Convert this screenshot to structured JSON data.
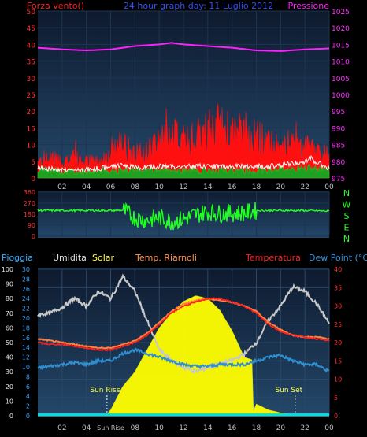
{
  "title": "24 hour graph day:  11 Luglio 2012",
  "top_panel": {
    "left_label": "Forza vento()",
    "right_label": "Pressione",
    "left_ticks": [
      "50",
      "45",
      "40",
      "35",
      "30",
      "25",
      "20",
      "15",
      "10",
      "5",
      "0"
    ],
    "right_ticks": [
      "1025",
      "1020",
      "1015",
      "1010",
      "1005",
      "1000",
      "995",
      "990",
      "985",
      "980",
      "975"
    ],
    "x_ticks": [
      "02",
      "04",
      "06",
      "08",
      "10",
      "12",
      "14",
      "16",
      "18",
      "20",
      "22",
      "00"
    ]
  },
  "mid_panel": {
    "left_ticks": [
      "360",
      "270",
      "180",
      "90",
      "0"
    ],
    "right_letters": [
      "N",
      "W",
      "S",
      "E",
      "N"
    ],
    "x_ticks": [
      "02",
      "04",
      "06",
      "08",
      "10",
      "12",
      "14",
      "16",
      "18",
      "20",
      "22",
      "00"
    ]
  },
  "bottom_header": {
    "pioggia": "Pioggia",
    "umidita": "Umidita",
    "solar": "Solar",
    "temp_riarnoli": "Temp. Riarnoli",
    "temperatura": "Temperatura",
    "dew_point": "Dew Point (°C)"
  },
  "bottom_panel": {
    "left_ticks_outer": [
      "100",
      "90",
      "80",
      "70",
      "60",
      "50",
      "40",
      "30",
      "20",
      "10",
      "0"
    ],
    "left_ticks_inner": [
      "30",
      "28",
      "26",
      "24",
      "22",
      "20",
      "18",
      "16",
      "14",
      "12",
      "10",
      "8",
      "6",
      "4",
      "2",
      "0"
    ],
    "right_ticks": [
      "40",
      "35",
      "30",
      "25",
      "20",
      "15",
      "10",
      "5",
      "0"
    ],
    "x_ticks": [
      "02",
      "04",
      "Sun Rise",
      "08",
      "10",
      "12",
      "14",
      "16",
      "18",
      "20",
      "22",
      "00"
    ],
    "sun_rise_label": "Sun Rise",
    "sun_set_label": "Sun Set"
  },
  "colors": {
    "panel_top": "#0e1a2e",
    "panel_bottom": "#24486a",
    "wind_gust": "#ff1010",
    "wind_avg": "#ffffff",
    "wind_min": "#20a020",
    "pressure": "#ff20ff",
    "direction": "#22ff22",
    "humidity": "#c8c8c8",
    "solar": "#ffff00",
    "temperatura": "#ff2020",
    "temp_riarnoli": "#ff8040",
    "dew_point": "#2f8fd0",
    "rain": "#00e0e0"
  },
  "chart_data": [
    {
      "type": "area",
      "name": "wind_pressure",
      "x_unit": "hour",
      "xlim": [
        0,
        24
      ],
      "ylim_left": [
        0,
        50
      ],
      "ylim_right": [
        975,
        1025
      ],
      "left_axis_label": "Forza vento()",
      "right_axis_label": "Pressione",
      "series": [
        {
          "name": "Pressione",
          "axis": "right",
          "x": [
            0,
            2,
            4,
            6,
            8,
            10,
            11,
            12,
            14,
            16,
            18,
            20,
            22,
            24
          ],
          "values": [
            1014,
            1013.5,
            1013.2,
            1013.5,
            1014.5,
            1015,
            1015.5,
            1015,
            1014.5,
            1014,
            1013.2,
            1013,
            1013.5,
            1013.8
          ]
        },
        {
          "name": "gust",
          "axis": "left",
          "x": [
            0,
            1,
            2,
            3,
            4,
            5,
            5.5,
            6,
            7,
            8,
            9,
            10,
            11,
            12,
            13,
            14,
            15,
            16,
            17,
            18,
            19,
            20,
            21,
            22,
            23,
            24
          ],
          "values": [
            5,
            6,
            5,
            5,
            5,
            5,
            6,
            9,
            10,
            7,
            8,
            12,
            13,
            11,
            12,
            14,
            16,
            13,
            14,
            12,
            11,
            11,
            10,
            9,
            8,
            7
          ]
        },
        {
          "name": "average",
          "axis": "left",
          "x": [
            0,
            2,
            4,
            5.5,
            6,
            7,
            8,
            10,
            12,
            14,
            16,
            18,
            19,
            20,
            22,
            22.5,
            23,
            24
          ],
          "values": [
            3,
            2.5,
            2.5,
            3,
            3.5,
            4,
            3,
            3.5,
            3.5,
            3.5,
            3.5,
            3.5,
            3.5,
            3.8,
            5,
            6,
            4.5,
            3
          ]
        },
        {
          "name": "min",
          "axis": "left",
          "x": [
            0,
            2,
            4,
            6,
            8,
            10,
            12,
            14,
            16,
            18,
            20,
            22,
            24
          ],
          "values": [
            1.5,
            1,
            1,
            1.2,
            1.5,
            1.5,
            1.2,
            1.2,
            1.2,
            1.2,
            1.5,
            2,
            1.5
          ]
        }
      ]
    },
    {
      "type": "line",
      "name": "wind_direction",
      "xlim": [
        0,
        24
      ],
      "ylim": [
        0,
        360
      ],
      "series": [
        {
          "name": "direction",
          "x": [
            0,
            2,
            4,
            6,
            7,
            8,
            9,
            10,
            11,
            12,
            13,
            14,
            15,
            16,
            17,
            18,
            20,
            22,
            24
          ],
          "values": [
            210,
            210,
            210,
            210,
            212,
            150,
            130,
            155,
            120,
            140,
            175,
            200,
            185,
            190,
            190,
            210,
            210,
            210,
            205
          ]
        }
      ]
    },
    {
      "type": "line",
      "name": "weather",
      "xlim": [
        0,
        24
      ],
      "ylim_left_outer": [
        0,
        100
      ],
      "ylim_right": [
        0,
        40
      ],
      "series": [
        {
          "name": "Umidita",
          "axis": "outer",
          "x": [
            0,
            1,
            2,
            3,
            4,
            5,
            6,
            7,
            8,
            9,
            10,
            11,
            12,
            13,
            14,
            15,
            16,
            17,
            18,
            19,
            20,
            21,
            22,
            23,
            24
          ],
          "values": [
            69,
            70,
            74,
            80,
            75,
            85,
            80,
            95,
            85,
            65,
            45,
            38,
            33,
            30,
            33,
            35,
            38,
            42,
            50,
            65,
            75,
            88,
            85,
            76,
            63
          ]
        },
        {
          "name": "Solar",
          "axis": "outer",
          "x": [
            0,
            5,
            5.7,
            6,
            6.5,
            7,
            8,
            9,
            10,
            11,
            12,
            13,
            14,
            15,
            16,
            17,
            17.7,
            17.75,
            18,
            19,
            20,
            21,
            21.5,
            22,
            24
          ],
          "values": [
            0,
            0,
            1,
            4,
            12,
            20,
            30,
            45,
            60,
            70,
            78,
            82,
            80,
            72,
            58,
            40,
            38,
            3,
            8,
            4,
            2,
            1,
            0,
            0,
            0
          ]
        },
        {
          "name": "Temperatura",
          "axis": "right",
          "x": [
            0,
            1,
            2,
            3,
            4,
            5,
            6,
            7,
            8,
            9,
            10,
            11,
            12,
            13,
            14,
            15,
            16,
            17,
            18,
            19,
            20,
            21,
            22,
            23,
            24
          ],
          "values": [
            20,
            19.5,
            19.5,
            19,
            18.5,
            18,
            18,
            19,
            20,
            22,
            25,
            28,
            30,
            31,
            32,
            32,
            31,
            30,
            28,
            25,
            23,
            22,
            21.5,
            21,
            20.5
          ]
        },
        {
          "name": "Temp. Riarnoli",
          "axis": "right",
          "x": [
            0,
            1,
            2,
            3,
            4,
            5,
            6,
            7,
            8,
            9,
            10,
            11,
            12,
            13,
            14,
            15,
            16,
            17,
            18,
            19,
            20,
            21,
            22,
            23,
            24
          ],
          "values": [
            21,
            20.5,
            20,
            19.5,
            19,
            18.5,
            18.5,
            19.5,
            20.5,
            22.5,
            25.5,
            28.5,
            30.5,
            31.5,
            32,
            31.5,
            31,
            30,
            28.5,
            25.5,
            23.5,
            22,
            21.5,
            21.5,
            21
          ]
        },
        {
          "name": "Dew Point (°C)",
          "axis": "right",
          "x": [
            0,
            1,
            2,
            3,
            4,
            5,
            6,
            7,
            8,
            9,
            10,
            11,
            12,
            13,
            14,
            15,
            16,
            17,
            18,
            19,
            20,
            21,
            22,
            23,
            24
          ],
          "values": [
            13,
            13.5,
            14,
            14.5,
            14,
            15,
            15,
            17,
            18,
            17,
            16,
            15,
            14,
            13.5,
            13.5,
            14,
            14,
            14,
            15,
            16,
            16.5,
            15,
            14,
            14,
            12
          ]
        },
        {
          "name": "Pioggia",
          "axis": "outer",
          "x": [
            0,
            24
          ],
          "values": [
            0.5,
            0.5
          ]
        }
      ]
    }
  ]
}
